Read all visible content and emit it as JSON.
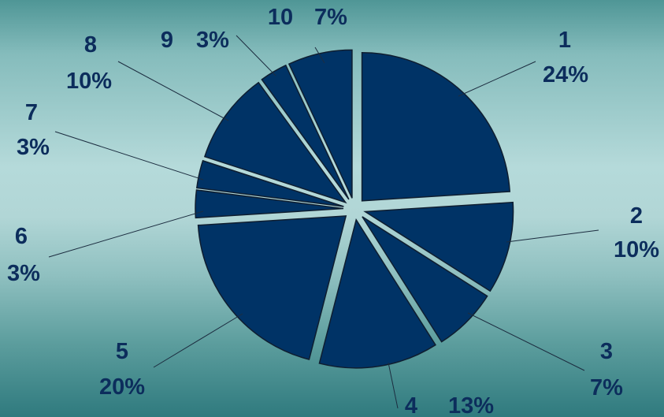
{
  "chart_data": {
    "type": "pie",
    "title": "",
    "colors": {
      "slice": "#003366",
      "label": "#0c2d5c",
      "edge": "#0f1e30"
    },
    "slices": [
      {
        "category": "1",
        "value": 24,
        "label": "24%"
      },
      {
        "category": "2",
        "value": 10,
        "label": "10%"
      },
      {
        "category": "3",
        "value": 7,
        "label": "7%"
      },
      {
        "category": "4",
        "value": 13,
        "label": "13%"
      },
      {
        "category": "5",
        "value": 20,
        "label": "20%"
      },
      {
        "category": "6",
        "value": 3,
        "label": "3%"
      },
      {
        "category": "7",
        "value": 3,
        "label": "3%"
      },
      {
        "category": "8",
        "value": 10,
        "label": "10%"
      },
      {
        "category": "9",
        "value": 3,
        "label": "3%"
      },
      {
        "category": "10",
        "value": 7,
        "label": "7%"
      }
    ]
  }
}
